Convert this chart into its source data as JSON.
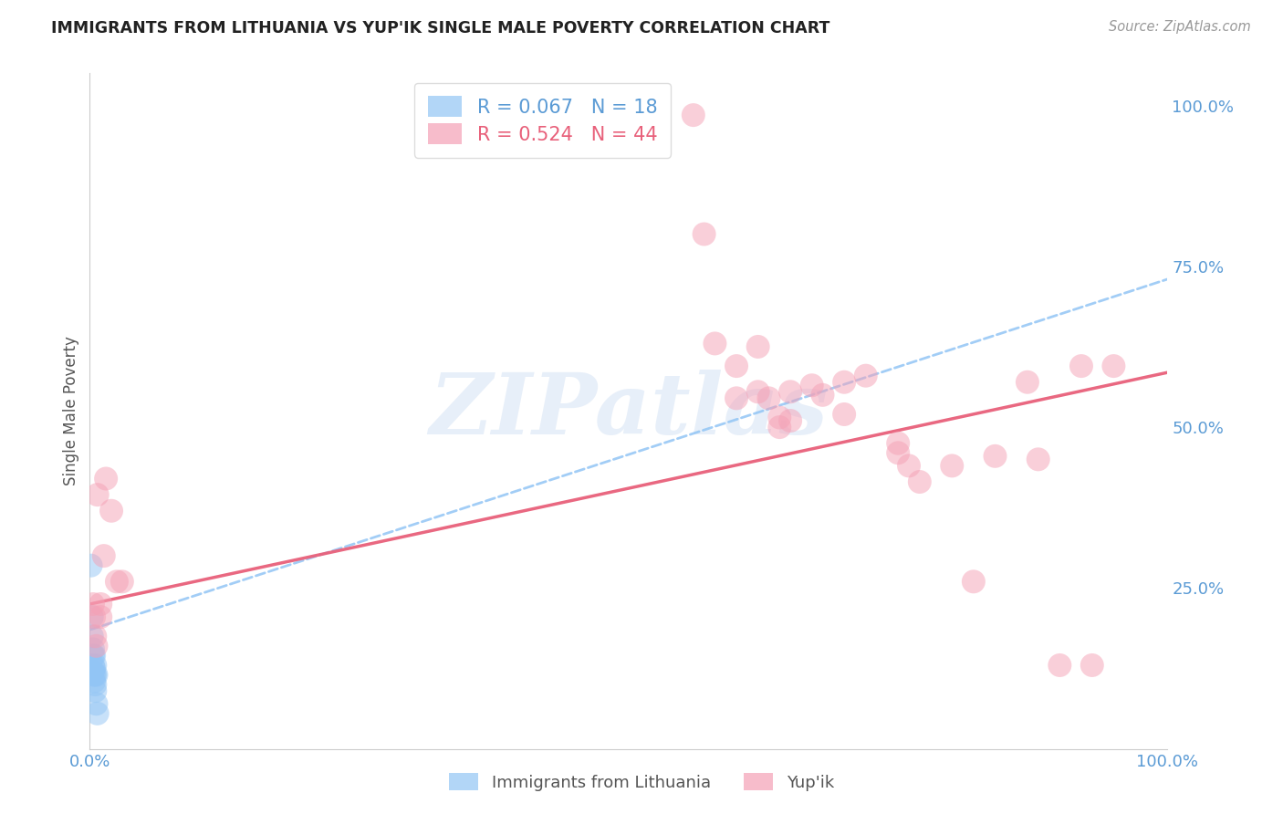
{
  "title": "IMMIGRANTS FROM LITHUANIA VS YUP'IK SINGLE MALE POVERTY CORRELATION CHART",
  "source": "Source: ZipAtlas.com",
  "ylabel": "Single Male Poverty",
  "legend_blue_r": "R = 0.067",
  "legend_blue_n": "N = 18",
  "legend_pink_r": "R = 0.524",
  "legend_pink_n": "N = 44",
  "legend_label_blue": "Immigrants from Lithuania",
  "legend_label_pink": "Yup'ik",
  "blue_color": "#92c5f5",
  "pink_color": "#f5a0b5",
  "blue_line_color": "#92c5f5",
  "pink_line_color": "#e8607a",
  "watermark_text": "ZIPatlas",
  "blue_scatter": [
    [
      0.001,
      0.285
    ],
    [
      0.002,
      0.205
    ],
    [
      0.002,
      0.175
    ],
    [
      0.003,
      0.155
    ],
    [
      0.003,
      0.145
    ],
    [
      0.003,
      0.13
    ],
    [
      0.003,
      0.12
    ],
    [
      0.004,
      0.145
    ],
    [
      0.004,
      0.125
    ],
    [
      0.004,
      0.115
    ],
    [
      0.004,
      0.105
    ],
    [
      0.005,
      0.13
    ],
    [
      0.005,
      0.115
    ],
    [
      0.005,
      0.1
    ],
    [
      0.005,
      0.09
    ],
    [
      0.006,
      0.115
    ],
    [
      0.006,
      0.07
    ],
    [
      0.007,
      0.055
    ]
  ],
  "pink_scatter": [
    [
      0.003,
      0.225
    ],
    [
      0.004,
      0.205
    ],
    [
      0.005,
      0.175
    ],
    [
      0.006,
      0.16
    ],
    [
      0.007,
      0.395
    ],
    [
      0.01,
      0.225
    ],
    [
      0.01,
      0.205
    ],
    [
      0.013,
      0.3
    ],
    [
      0.015,
      0.42
    ],
    [
      0.02,
      0.37
    ],
    [
      0.025,
      0.26
    ],
    [
      0.03,
      0.26
    ],
    [
      0.5,
      0.985
    ],
    [
      0.52,
      0.985
    ],
    [
      0.56,
      0.985
    ],
    [
      0.57,
      0.8
    ],
    [
      0.58,
      0.63
    ],
    [
      0.6,
      0.595
    ],
    [
      0.6,
      0.545
    ],
    [
      0.62,
      0.625
    ],
    [
      0.62,
      0.555
    ],
    [
      0.63,
      0.545
    ],
    [
      0.64,
      0.515
    ],
    [
      0.64,
      0.5
    ],
    [
      0.65,
      0.555
    ],
    [
      0.65,
      0.51
    ],
    [
      0.67,
      0.565
    ],
    [
      0.68,
      0.55
    ],
    [
      0.7,
      0.57
    ],
    [
      0.7,
      0.52
    ],
    [
      0.72,
      0.58
    ],
    [
      0.75,
      0.475
    ],
    [
      0.75,
      0.46
    ],
    [
      0.76,
      0.44
    ],
    [
      0.77,
      0.415
    ],
    [
      0.8,
      0.44
    ],
    [
      0.82,
      0.26
    ],
    [
      0.84,
      0.455
    ],
    [
      0.87,
      0.57
    ],
    [
      0.88,
      0.45
    ],
    [
      0.9,
      0.13
    ],
    [
      0.92,
      0.595
    ],
    [
      0.93,
      0.13
    ],
    [
      0.95,
      0.595
    ]
  ],
  "blue_line_x": [
    0.0,
    1.0
  ],
  "blue_line_y_start": 0.185,
  "blue_line_y_end": 0.73,
  "pink_line_x": [
    0.0,
    1.0
  ],
  "pink_line_y_start": 0.225,
  "pink_line_y_end": 0.585,
  "xlim": [
    0.0,
    1.0
  ],
  "ylim": [
    0.0,
    1.05
  ],
  "ytick_positions": [
    0.0,
    0.25,
    0.5,
    0.75,
    1.0
  ],
  "ytick_labels": [
    "",
    "25.0%",
    "50.0%",
    "75.0%",
    "100.0%"
  ],
  "xtick_labels_show": [
    "0.0%",
    "100.0%"
  ],
  "background_color": "#ffffff",
  "grid_color": "#e8e8e8",
  "tick_color": "#5b9bd5"
}
